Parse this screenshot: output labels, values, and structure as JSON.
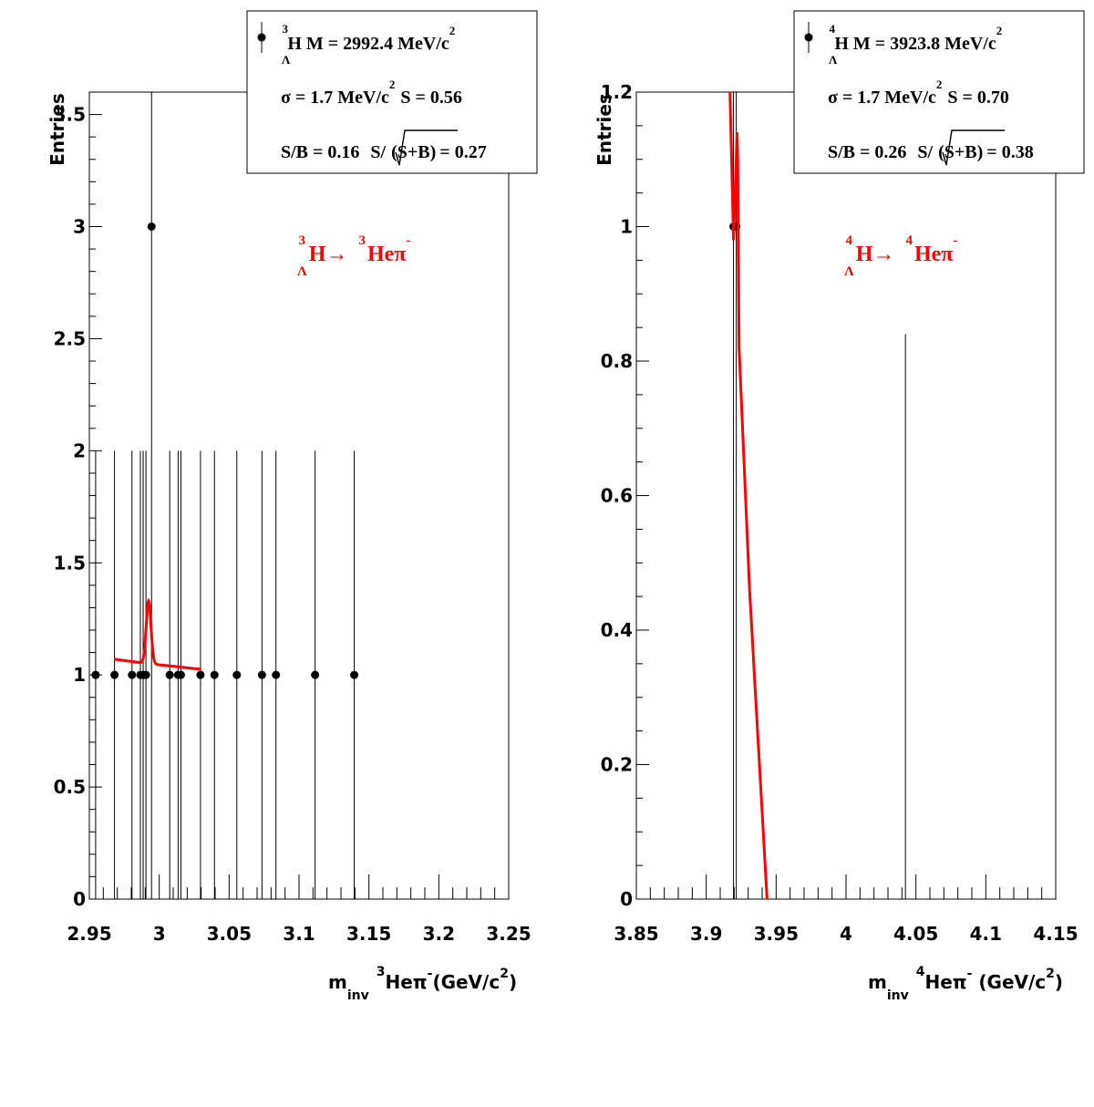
{
  "chart_data": [
    {
      "type": "scatter",
      "x_label": {
        "main": "m",
        "sub": "inv",
        "nucleus_sup": "3",
        "rest": "Heπ",
        "minus_sup": "-",
        "units": "(GeV/c",
        "units_sup": "2",
        "units_close": ")"
      },
      "y_label": "Entries",
      "xlim": [
        2.95,
        3.25
      ],
      "ylim": [
        0,
        3.6
      ],
      "x_ticks": [
        2.95,
        3,
        3.05,
        3.1,
        3.15,
        3.2,
        3.25
      ],
      "x_tick_labels": [
        "2.95",
        "3",
        "3.05",
        "3.1",
        "3.15",
        "3.2",
        "3.25"
      ],
      "y_ticks": [
        0,
        0.5,
        1,
        1.5,
        2,
        2.5,
        3,
        3.5
      ],
      "y_tick_labels": [
        "0",
        "0.5",
        "1",
        "1.5",
        "2",
        "2.5",
        "3",
        "3.5"
      ],
      "points": [
        {
          "x": 2.9545,
          "y": 1,
          "err_hi": 1
        },
        {
          "x": 2.968,
          "y": 1,
          "err_hi": 1
        },
        {
          "x": 2.9805,
          "y": 1,
          "err_hi": 1
        },
        {
          "x": 2.9865,
          "y": 1,
          "err_hi": 1
        },
        {
          "x": 2.9885,
          "y": 1,
          "err_hi": 1
        },
        {
          "x": 2.9905,
          "y": 1,
          "err_hi": 1
        },
        {
          "x": 2.9945,
          "y": 3,
          "err_hi": 2
        },
        {
          "x": 3.0075,
          "y": 1,
          "err_hi": 1
        },
        {
          "x": 3.0135,
          "y": 1,
          "err_hi": 1
        },
        {
          "x": 3.0155,
          "y": 1,
          "err_hi": 1
        },
        {
          "x": 3.0295,
          "y": 1,
          "err_hi": 1
        },
        {
          "x": 3.0395,
          "y": 1,
          "err_hi": 1
        },
        {
          "x": 3.0555,
          "y": 1,
          "err_hi": 1
        },
        {
          "x": 3.0735,
          "y": 1,
          "err_hi": 1
        },
        {
          "x": 3.0835,
          "y": 1,
          "err_hi": 1
        },
        {
          "x": 3.1115,
          "y": 1,
          "err_hi": 1
        },
        {
          "x": 3.1395,
          "y": 1,
          "err_hi": 1
        }
      ],
      "fit": {
        "color": "#ff0000",
        "mean": 2.9924,
        "sigma": 0.0017,
        "amplitude": 0.28,
        "background": [
          [
            2.968,
            1.07
          ],
          [
            2.99,
            1.052
          ],
          [
            3.03,
            1.025
          ]
        ]
      },
      "legend": {
        "line1_sup": "3",
        "line1_sub": "Λ",
        "line1_text": "H M = 2992.4 MeV/c",
        "line1_pow": "2",
        "line2_text": "σ = 1.7 MeV/c",
        "line2_pow": "2",
        "line2_s": "S = 0.56",
        "line3_sb": "S/B = 0.16",
        "line3_s": "S/",
        "line3_root": "(S+B)",
        "line3_val": "= 0.27"
      },
      "reaction": {
        "sup1": "3",
        "sub1": "Λ",
        "text1": "H→",
        "sup2": "3",
        "text2": "Heπ",
        "minus": "-"
      }
    },
    {
      "type": "scatter",
      "x_label": {
        "main": "m",
        "sub": "inv",
        "nucleus_sup": "4",
        "rest": "Heπ",
        "minus_sup": "-",
        "units": " (GeV/c",
        "units_sup": "2",
        "units_close": ")"
      },
      "y_label": "Entries",
      "xlim": [
        3.85,
        4.15
      ],
      "ylim": [
        0,
        1.2
      ],
      "x_ticks": [
        3.85,
        3.9,
        3.95,
        4,
        4.05,
        4.1,
        4.15
      ],
      "x_tick_labels": [
        "3.85",
        "3.9",
        "3.95",
        "4",
        "4.05",
        "4.1",
        "4.15"
      ],
      "y_ticks": [
        0,
        0.2,
        0.4,
        0.6,
        0.8,
        1,
        1.2
      ],
      "y_tick_labels": [
        "0",
        "0.2",
        "0.4",
        "0.6",
        "0.8",
        "1",
        "1.2"
      ],
      "points": [
        {
          "x": 3.9195,
          "y": 1,
          "err_hi": 1
        },
        {
          "x": 3.9215,
          "y": 1,
          "err_hi": 1
        }
      ],
      "extra_error_lines": [
        {
          "x": 4.0425,
          "y_top": 0.84
        }
      ],
      "fit": {
        "color": "#ff0000",
        "polyline": [
          [
            3.917,
            1.2
          ],
          [
            3.9195,
            0.98
          ],
          [
            3.9215,
            1.1
          ],
          [
            3.922,
            1.14
          ],
          [
            3.9225,
            1.1
          ],
          [
            3.9235,
            0.82
          ],
          [
            3.931,
            0.46
          ],
          [
            3.9435,
            0
          ]
        ]
      },
      "legend": {
        "line1_sup": "4",
        "line1_sub": "Λ",
        "line1_text": "H M = 3923.8 MeV/c",
        "line1_pow": "2",
        "line2_text": "σ = 1.7 MeV/c",
        "line2_pow": "2",
        "line2_s": "S = 0.70",
        "line3_sb": "S/B = 0.26",
        "line3_s": "S/",
        "line3_root": "(S+B)",
        "line3_val": "= 0.38"
      },
      "reaction": {
        "sup1": "4",
        "sub1": "Λ",
        "text1": "H→",
        "sup2": "4",
        "text2": "Heπ",
        "minus": "-"
      }
    }
  ]
}
